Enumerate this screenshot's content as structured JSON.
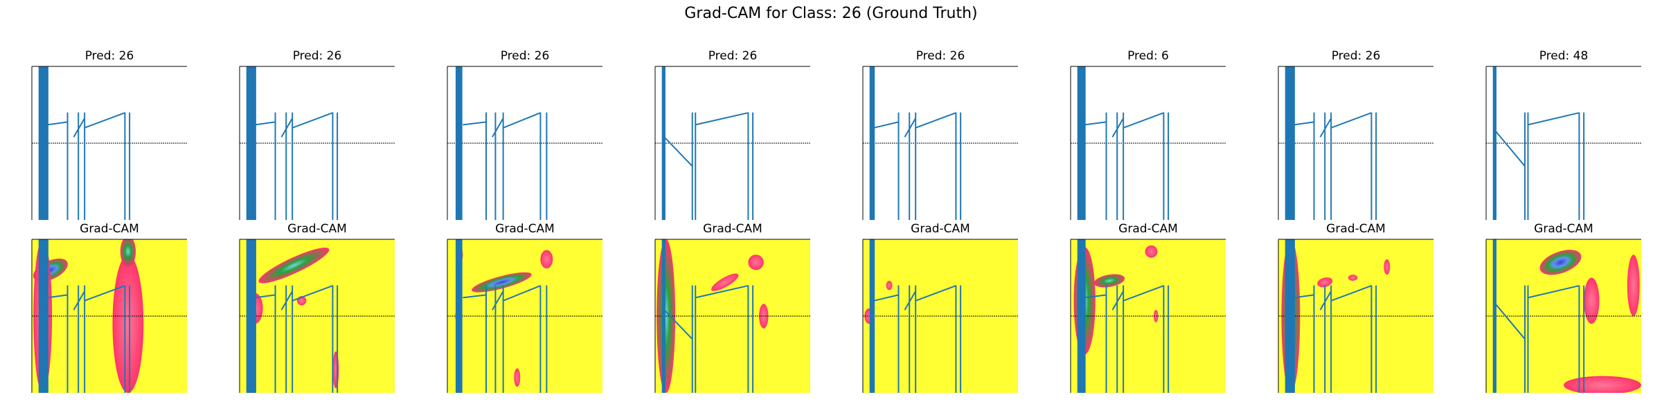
{
  "chart_data": {
    "type": "line",
    "title": "Grad-CAM for Class: 26 (Ground Truth)",
    "grid": false,
    "axes_visible": false,
    "panel_rows": [
      "prediction",
      "gradcam"
    ],
    "colors": {
      "signal": "#1f77b4",
      "baseline": "#000000",
      "heat_low": "#ffff33",
      "heat_mid": "#ff2a6d",
      "heat_high": "#2a3bd6",
      "heat_green": "#1b9e3e",
      "heat_cyan": "#6fd3e8"
    },
    "panels": [
      {
        "pred_title": "Pred: 26",
        "cam_title": "Grad-CAM",
        "signal": {
          "spikes": [
            0.05,
            0.06,
            0.07,
            0.08,
            0.09,
            0.1
          ],
          "ramps": [
            [
              0.1,
              0.38,
              0.23,
              0.48
            ],
            [
              0.27,
              0.46,
              0.34,
              0.52
            ],
            [
              0.34,
              0.4,
              0.6,
              0.58
            ]
          ],
          "drops": [
            0.23,
            0.3,
            0.34,
            0.6,
            0.63
          ],
          "baseline": 0.5
        },
        "cam_blobs": [
          {
            "cx": 0.12,
            "cy": 0.2,
            "rx": 0.12,
            "ry": 0.06,
            "level": "high",
            "rot": -25
          },
          {
            "cx": 0.07,
            "cy": 0.5,
            "rx": 0.06,
            "ry": 0.5,
            "level": "mid",
            "rot": 0
          },
          {
            "cx": 0.62,
            "cy": 0.55,
            "rx": 0.1,
            "ry": 0.45,
            "level": "mid",
            "rot": 0
          },
          {
            "cx": 0.62,
            "cy": 0.08,
            "rx": 0.05,
            "ry": 0.1,
            "level": "green",
            "rot": 0
          }
        ]
      },
      {
        "pred_title": "Pred: 26",
        "cam_title": "Grad-CAM",
        "signal": {
          "spikes": [
            0.05,
            0.06,
            0.07,
            0.08,
            0.09,
            0.1
          ],
          "ramps": [
            [
              0.1,
              0.38,
              0.23,
              0.48
            ],
            [
              0.27,
              0.46,
              0.34,
              0.52
            ],
            [
              0.34,
              0.4,
              0.6,
              0.58
            ]
          ],
          "drops": [
            0.23,
            0.3,
            0.34,
            0.6,
            0.63
          ],
          "baseline": 0.5
        },
        "cam_blobs": [
          {
            "cx": 0.35,
            "cy": 0.17,
            "rx": 0.25,
            "ry": 0.05,
            "level": "green",
            "rot": -25
          },
          {
            "cx": 0.1,
            "cy": 0.45,
            "rx": 0.05,
            "ry": 0.1,
            "level": "mid",
            "rot": 0
          },
          {
            "cx": 0.4,
            "cy": 0.4,
            "rx": 0.03,
            "ry": 0.03,
            "level": "mid",
            "rot": 0
          },
          {
            "cx": 0.62,
            "cy": 0.85,
            "rx": 0.02,
            "ry": 0.12,
            "level": "mid",
            "rot": 0
          }
        ]
      },
      {
        "pred_title": "Pred: 26",
        "cam_title": "Grad-CAM",
        "signal": {
          "spikes": [
            0.06,
            0.07,
            0.08,
            0.09
          ],
          "ramps": [
            [
              0.1,
              0.38,
              0.25,
              0.48
            ],
            [
              0.29,
              0.46,
              0.36,
              0.52
            ],
            [
              0.36,
              0.4,
              0.6,
              0.58
            ]
          ],
          "drops": [
            0.25,
            0.31,
            0.36,
            0.6,
            0.64
          ],
          "baseline": 0.5
        },
        "cam_blobs": [
          {
            "cx": 0.35,
            "cy": 0.28,
            "rx": 0.2,
            "ry": 0.04,
            "level": "high",
            "rot": -15
          },
          {
            "cx": 0.64,
            "cy": 0.13,
            "rx": 0.04,
            "ry": 0.06,
            "level": "mid",
            "rot": 0
          },
          {
            "cx": 0.08,
            "cy": 0.1,
            "rx": 0.02,
            "ry": 0.05,
            "level": "mid",
            "rot": 0
          },
          {
            "cx": 0.07,
            "cy": 0.5,
            "rx": 0.02,
            "ry": 0.04,
            "level": "mid",
            "rot": 0
          },
          {
            "cx": 0.45,
            "cy": 0.9,
            "rx": 0.02,
            "ry": 0.06,
            "level": "mid",
            "rot": 0
          }
        ]
      },
      {
        "pred_title": "Pred: 26",
        "cam_title": "Grad-CAM",
        "signal": {
          "spikes": [
            0.05,
            0.06
          ],
          "ramps": [
            [
              0.05,
              0.45,
              0.24,
              0.0
            ],
            [
              0.26,
              0.38,
              0.6,
              0.58
            ]
          ],
          "drops": [
            0.24,
            0.26,
            0.6,
            0.63
          ],
          "baseline": 0.5
        },
        "cam_blobs": [
          {
            "cx": 0.07,
            "cy": 0.5,
            "rx": 0.06,
            "ry": 0.5,
            "level": "green",
            "rot": 0
          },
          {
            "cx": 0.45,
            "cy": 0.28,
            "rx": 0.1,
            "ry": 0.03,
            "level": "mid",
            "rot": -30
          },
          {
            "cx": 0.65,
            "cy": 0.15,
            "rx": 0.05,
            "ry": 0.05,
            "level": "mid",
            "rot": 0
          },
          {
            "cx": 0.7,
            "cy": 0.5,
            "rx": 0.03,
            "ry": 0.08,
            "level": "mid",
            "rot": 0
          }
        ]
      },
      {
        "pred_title": "Pred: 26",
        "cam_title": "Grad-CAM",
        "signal": {
          "spikes": [
            0.05,
            0.06,
            0.07
          ],
          "ramps": [
            [
              0.07,
              0.4,
              0.23,
              0.48
            ],
            [
              0.27,
              0.46,
              0.34,
              0.52
            ],
            [
              0.34,
              0.4,
              0.6,
              0.58
            ]
          ],
          "drops": [
            0.23,
            0.3,
            0.34,
            0.6,
            0.63
          ],
          "baseline": 0.5
        },
        "cam_blobs": [
          {
            "cx": 0.04,
            "cy": 0.5,
            "rx": 0.03,
            "ry": 0.05,
            "level": "mid",
            "rot": 0
          },
          {
            "cx": 0.17,
            "cy": 0.3,
            "rx": 0.02,
            "ry": 0.03,
            "level": "mid",
            "rot": 0
          }
        ]
      },
      {
        "pred_title": "Pred: 6",
        "cam_title": "Grad-CAM",
        "signal": {
          "spikes": [
            0.05,
            0.06,
            0.07,
            0.08,
            0.09
          ],
          "ramps": [
            [
              0.09,
              0.38,
              0.23,
              0.48
            ],
            [
              0.27,
              0.46,
              0.34,
              0.52
            ],
            [
              0.34,
              0.4,
              0.6,
              0.58
            ]
          ],
          "drops": [
            0.23,
            0.3,
            0.34,
            0.6,
            0.63
          ],
          "baseline": 0.5
        },
        "cam_blobs": [
          {
            "cx": 0.09,
            "cy": 0.4,
            "rx": 0.07,
            "ry": 0.35,
            "level": "green",
            "rot": 0
          },
          {
            "cx": 0.25,
            "cy": 0.27,
            "rx": 0.1,
            "ry": 0.04,
            "level": "green",
            "rot": -10
          },
          {
            "cx": 0.52,
            "cy": 0.08,
            "rx": 0.04,
            "ry": 0.04,
            "level": "mid",
            "rot": 0
          },
          {
            "cx": 0.55,
            "cy": 0.5,
            "rx": 0.015,
            "ry": 0.04,
            "level": "mid",
            "rot": 0
          }
        ]
      },
      {
        "pred_title": "Pred: 26",
        "cam_title": "Grad-CAM",
        "signal": {
          "spikes": [
            0.05,
            0.06,
            0.07,
            0.08,
            0.09,
            0.1
          ],
          "ramps": [
            [
              0.1,
              0.38,
              0.23,
              0.48
            ],
            [
              0.27,
              0.46,
              0.34,
              0.52
            ],
            [
              0.34,
              0.4,
              0.6,
              0.58
            ]
          ],
          "drops": [
            0.23,
            0.3,
            0.34,
            0.6,
            0.63
          ],
          "baseline": 0.5
        },
        "cam_blobs": [
          {
            "cx": 0.08,
            "cy": 0.5,
            "rx": 0.06,
            "ry": 0.5,
            "level": "green",
            "rot": 0
          },
          {
            "cx": 0.3,
            "cy": 0.28,
            "rx": 0.05,
            "ry": 0.03,
            "level": "mid",
            "rot": -15
          },
          {
            "cx": 0.48,
            "cy": 0.25,
            "rx": 0.03,
            "ry": 0.02,
            "level": "mid",
            "rot": 0
          },
          {
            "cx": 0.7,
            "cy": 0.18,
            "rx": 0.02,
            "ry": 0.05,
            "level": "mid",
            "rot": 0
          }
        ]
      },
      {
        "pred_title": "Pred: 48",
        "cam_title": "Grad-CAM",
        "signal": {
          "spikes": [
            0.05,
            0.06
          ],
          "ramps": [
            [
              0.06,
              0.42,
              0.25,
              0.0
            ],
            [
              0.27,
              0.38,
              0.6,
              0.58
            ]
          ],
          "drops": [
            0.25,
            0.27,
            0.6,
            0.63
          ],
          "baseline": 0.5
        },
        "cam_blobs": [
          {
            "cx": 0.48,
            "cy": 0.15,
            "rx": 0.14,
            "ry": 0.07,
            "level": "high",
            "rot": -20
          },
          {
            "cx": 0.68,
            "cy": 0.4,
            "rx": 0.05,
            "ry": 0.15,
            "level": "mid",
            "rot": 0
          },
          {
            "cx": 0.75,
            "cy": 0.95,
            "rx": 0.25,
            "ry": 0.06,
            "level": "mid",
            "rot": 0
          },
          {
            "cx": 0.95,
            "cy": 0.3,
            "rx": 0.04,
            "ry": 0.2,
            "level": "mid",
            "rot": 0
          }
        ]
      }
    ]
  }
}
